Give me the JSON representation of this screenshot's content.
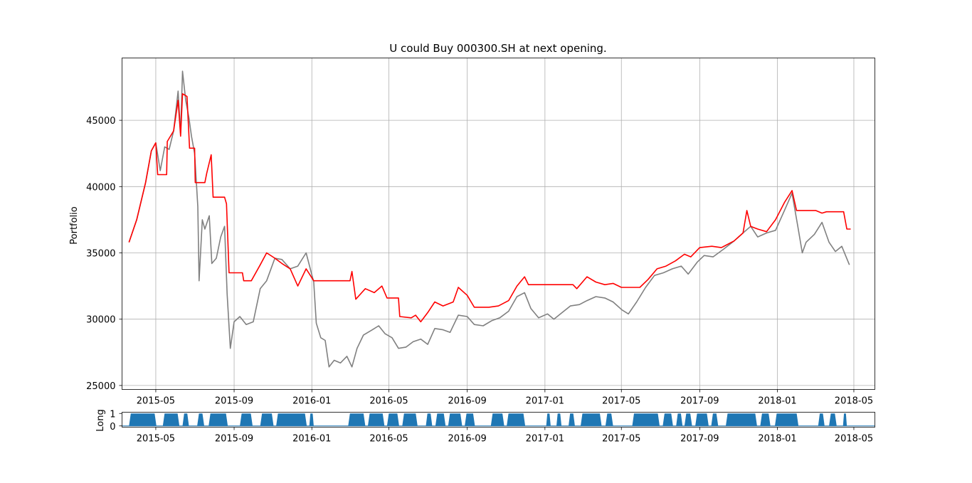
{
  "chart_data": [
    {
      "type": "line",
      "title": "U could Buy 000300.SH at next opening.",
      "xlabel": "",
      "ylabel": "Portfolio",
      "x_ticks": [
        "2015-05",
        "2015-09",
        "2016-01",
        "2016-05",
        "2016-09",
        "2017-01",
        "2017-05",
        "2017-09",
        "2018-01",
        "2018-05"
      ],
      "y_ticks": [
        25000,
        30000,
        35000,
        40000,
        45000
      ],
      "xlim": [
        "2015-03-09",
        "2018-06-03"
      ],
      "ylim": [
        24700,
        49700
      ],
      "grid": true,
      "series": [
        {
          "color": "#808080",
          "points": [
            [
              "2015-03-20",
              35800
            ],
            [
              "2015-04-01",
              37500
            ],
            [
              "2015-04-15",
              40300
            ],
            [
              "2015-04-24",
              42700
            ],
            [
              "2015-05-01",
              43300
            ],
            [
              "2015-05-08",
              41200
            ],
            [
              "2015-05-15",
              43000
            ],
            [
              "2015-05-22",
              42800
            ],
            [
              "2015-05-29",
              44200
            ],
            [
              "2015-06-05",
              47200
            ],
            [
              "2015-06-09",
              44000
            ],
            [
              "2015-06-12",
              48700
            ],
            [
              "2015-06-17",
              46500
            ],
            [
              "2015-06-22",
              45200
            ],
            [
              "2015-06-26",
              43800
            ],
            [
              "2015-07-01",
              42500
            ],
            [
              "2015-07-06",
              38500
            ],
            [
              "2015-07-08",
              32900
            ],
            [
              "2015-07-13",
              37500
            ],
            [
              "2015-07-17",
              36800
            ],
            [
              "2015-07-24",
              37800
            ],
            [
              "2015-07-28",
              34200
            ],
            [
              "2015-08-04",
              34600
            ],
            [
              "2015-08-11",
              36200
            ],
            [
              "2015-08-17",
              37000
            ],
            [
              "2015-08-21",
              31900
            ],
            [
              "2015-08-26",
              27800
            ],
            [
              "2015-09-01",
              29800
            ],
            [
              "2015-09-10",
              30200
            ],
            [
              "2015-09-20",
              29600
            ],
            [
              "2015-10-01",
              29800
            ],
            [
              "2015-10-12",
              32300
            ],
            [
              "2015-10-22",
              32900
            ],
            [
              "2015-11-04",
              34600
            ],
            [
              "2015-11-15",
              34500
            ],
            [
              "2015-11-28",
              33800
            ],
            [
              "2015-12-10",
              34000
            ],
            [
              "2015-12-23",
              35000
            ],
            [
              "2016-01-04",
              32800
            ],
            [
              "2016-01-08",
              29700
            ],
            [
              "2016-01-15",
              28600
            ],
            [
              "2016-01-22",
              28400
            ],
            [
              "2016-01-28",
              26400
            ],
            [
              "2016-02-05",
              26900
            ],
            [
              "2016-02-15",
              26700
            ],
            [
              "2016-02-25",
              27200
            ],
            [
              "2016-03-04",
              26400
            ],
            [
              "2016-03-12",
              27800
            ],
            [
              "2016-03-22",
              28800
            ],
            [
              "2016-04-05",
              29200
            ],
            [
              "2016-04-15",
              29500
            ],
            [
              "2016-04-25",
              28900
            ],
            [
              "2016-05-06",
              28600
            ],
            [
              "2016-05-16",
              27800
            ],
            [
              "2016-05-28",
              27900
            ],
            [
              "2016-06-08",
              28300
            ],
            [
              "2016-06-20",
              28500
            ],
            [
              "2016-07-01",
              28100
            ],
            [
              "2016-07-12",
              29300
            ],
            [
              "2016-07-25",
              29200
            ],
            [
              "2016-08-05",
              29000
            ],
            [
              "2016-08-18",
              30300
            ],
            [
              "2016-09-01",
              30200
            ],
            [
              "2016-09-12",
              29600
            ],
            [
              "2016-09-26",
              29500
            ],
            [
              "2016-10-10",
              29900
            ],
            [
              "2016-10-22",
              30100
            ],
            [
              "2016-11-05",
              30600
            ],
            [
              "2016-11-18",
              31700
            ],
            [
              "2016-11-30",
              32000
            ],
            [
              "2016-12-10",
              30800
            ],
            [
              "2016-12-22",
              30100
            ],
            [
              "2017-01-05",
              30400
            ],
            [
              "2017-01-15",
              30000
            ],
            [
              "2017-01-28",
              30500
            ],
            [
              "2017-02-10",
              31000
            ],
            [
              "2017-02-24",
              31100
            ],
            [
              "2017-03-08",
              31400
            ],
            [
              "2017-03-22",
              31700
            ],
            [
              "2017-04-05",
              31600
            ],
            [
              "2017-04-18",
              31300
            ],
            [
              "2017-05-02",
              30700
            ],
            [
              "2017-05-12",
              30400
            ],
            [
              "2017-05-25",
              31300
            ],
            [
              "2017-06-08",
              32400
            ],
            [
              "2017-06-22",
              33300
            ],
            [
              "2017-07-06",
              33500
            ],
            [
              "2017-07-20",
              33800
            ],
            [
              "2017-08-03",
              34000
            ],
            [
              "2017-08-14",
              33400
            ],
            [
              "2017-08-28",
              34300
            ],
            [
              "2017-09-08",
              34800
            ],
            [
              "2017-09-22",
              34700
            ],
            [
              "2017-10-09",
              35300
            ],
            [
              "2017-10-25",
              35900
            ],
            [
              "2017-11-08",
              36500
            ],
            [
              "2017-11-20",
              37000
            ],
            [
              "2017-12-01",
              36200
            ],
            [
              "2017-12-15",
              36500
            ],
            [
              "2017-12-29",
              36700
            ],
            [
              "2018-01-12",
              38200
            ],
            [
              "2018-01-24",
              39500
            ],
            [
              "2018-02-02",
              37000
            ],
            [
              "2018-02-09",
              35000
            ],
            [
              "2018-02-15",
              35800
            ],
            [
              "2018-02-28",
              36400
            ],
            [
              "2018-03-12",
              37300
            ],
            [
              "2018-03-23",
              35800
            ],
            [
              "2018-04-02",
              35100
            ],
            [
              "2018-04-12",
              35500
            ],
            [
              "2018-04-18",
              34800
            ],
            [
              "2018-04-24",
              34100
            ]
          ]
        },
        {
          "color": "#ff0000",
          "points": [
            [
              "2015-03-20",
              35800
            ],
            [
              "2015-04-01",
              37500
            ],
            [
              "2015-04-15",
              40300
            ],
            [
              "2015-04-24",
              42700
            ],
            [
              "2015-05-01",
              43300
            ],
            [
              "2015-05-04",
              40900
            ],
            [
              "2015-05-18",
              40900
            ],
            [
              "2015-05-19",
              43400
            ],
            [
              "2015-05-29",
              44200
            ],
            [
              "2015-06-05",
              46500
            ],
            [
              "2015-06-09",
              43800
            ],
            [
              "2015-06-12",
              47000
            ],
            [
              "2015-06-19",
              46800
            ],
            [
              "2015-06-23",
              42900
            ],
            [
              "2015-07-01",
              42900
            ],
            [
              "2015-07-02",
              40300
            ],
            [
              "2015-07-17",
              40300
            ],
            [
              "2015-07-20",
              41000
            ],
            [
              "2015-07-27",
              42400
            ],
            [
              "2015-07-30",
              39200
            ],
            [
              "2015-08-17",
              39200
            ],
            [
              "2015-08-20",
              38700
            ],
            [
              "2015-08-24",
              33500
            ],
            [
              "2015-09-14",
              33500
            ],
            [
              "2015-09-16",
              32900
            ],
            [
              "2015-09-28",
              32900
            ],
            [
              "2015-10-12",
              34100
            ],
            [
              "2015-10-22",
              35000
            ],
            [
              "2015-11-04",
              34600
            ],
            [
              "2015-11-15",
              34200
            ],
            [
              "2015-11-28",
              33800
            ],
            [
              "2015-12-10",
              32500
            ],
            [
              "2015-12-23",
              33800
            ],
            [
              "2016-01-04",
              32900
            ],
            [
              "2016-03-01",
              32900
            ],
            [
              "2016-03-04",
              33600
            ],
            [
              "2016-03-10",
              31500
            ],
            [
              "2016-03-25",
              32300
            ],
            [
              "2016-04-08",
              32000
            ],
            [
              "2016-04-20",
              32500
            ],
            [
              "2016-04-28",
              31600
            ],
            [
              "2016-05-16",
              31600
            ],
            [
              "2016-05-18",
              30200
            ],
            [
              "2016-06-05",
              30100
            ],
            [
              "2016-06-12",
              30300
            ],
            [
              "2016-06-20",
              29800
            ],
            [
              "2016-07-01",
              30500
            ],
            [
              "2016-07-12",
              31300
            ],
            [
              "2016-07-25",
              31000
            ],
            [
              "2016-08-10",
              31300
            ],
            [
              "2016-08-18",
              32400
            ],
            [
              "2016-09-01",
              31800
            ],
            [
              "2016-09-12",
              30900
            ],
            [
              "2016-10-05",
              30900
            ],
            [
              "2016-10-20",
              31000
            ],
            [
              "2016-11-05",
              31400
            ],
            [
              "2016-11-18",
              32500
            ],
            [
              "2016-11-30",
              33200
            ],
            [
              "2016-12-06",
              32600
            ],
            [
              "2017-02-14",
              32600
            ],
            [
              "2017-02-20",
              32300
            ],
            [
              "2017-03-08",
              33200
            ],
            [
              "2017-03-22",
              32800
            ],
            [
              "2017-04-05",
              32600
            ],
            [
              "2017-04-18",
              32700
            ],
            [
              "2017-05-01",
              32400
            ],
            [
              "2017-05-30",
              32400
            ],
            [
              "2017-06-12",
              33000
            ],
            [
              "2017-06-26",
              33800
            ],
            [
              "2017-07-10",
              34000
            ],
            [
              "2017-07-25",
              34400
            ],
            [
              "2017-08-08",
              34900
            ],
            [
              "2017-08-18",
              34700
            ],
            [
              "2017-09-01",
              35400
            ],
            [
              "2017-09-20",
              35500
            ],
            [
              "2017-10-05",
              35400
            ],
            [
              "2017-10-25",
              35900
            ],
            [
              "2017-11-08",
              36500
            ],
            [
              "2017-11-14",
              38200
            ],
            [
              "2017-11-20",
              37000
            ],
            [
              "2017-12-01",
              36800
            ],
            [
              "2017-12-15",
              36600
            ],
            [
              "2017-12-29",
              37500
            ],
            [
              "2018-01-12",
              38800
            ],
            [
              "2018-01-24",
              39700
            ],
            [
              "2018-01-31",
              38200
            ],
            [
              "2018-03-02",
              38200
            ],
            [
              "2018-03-12",
              38000
            ],
            [
              "2018-03-19",
              38100
            ],
            [
              "2018-04-15",
              38100
            ],
            [
              "2018-04-20",
              36800
            ],
            [
              "2018-04-26",
              36800
            ]
          ]
        }
      ]
    },
    {
      "type": "area",
      "title": "",
      "xlabel": "",
      "ylabel": "Long",
      "x_ticks": [
        "2015-05",
        "2015-09",
        "2016-01",
        "2016-05",
        "2016-09",
        "2017-01",
        "2017-05",
        "2017-09",
        "2018-01",
        "2018-05"
      ],
      "y_ticks": [
        0,
        1
      ],
      "xlim": [
        "2015-03-09",
        "2018-06-03"
      ],
      "ylim": [
        -0.1,
        1.1
      ],
      "grid": false,
      "color": "#1f77b4",
      "long_periods": [
        [
          "2015-03-20",
          "2015-05-02"
        ],
        [
          "2015-05-12",
          "2015-06-07"
        ],
        [
          "2015-06-12",
          "2015-06-22"
        ],
        [
          "2015-07-05",
          "2015-07-16"
        ],
        [
          "2015-07-23",
          "2015-08-22"
        ],
        [
          "2015-09-10",
          "2015-09-30"
        ],
        [
          "2015-10-12",
          "2015-11-02"
        ],
        [
          "2015-11-06",
          "2015-12-24"
        ],
        [
          "2015-12-28",
          "2016-01-04"
        ],
        [
          "2016-02-27",
          "2016-03-25"
        ],
        [
          "2016-03-29",
          "2016-04-24"
        ],
        [
          "2016-04-28",
          "2016-05-17"
        ],
        [
          "2016-05-22",
          "2016-06-15"
        ],
        [
          "2016-06-28",
          "2016-07-08"
        ],
        [
          "2016-07-13",
          "2016-07-29"
        ],
        [
          "2016-08-02",
          "2016-08-24"
        ],
        [
          "2016-08-28",
          "2016-09-13"
        ],
        [
          "2016-10-08",
          "2016-10-29"
        ],
        [
          "2016-11-02",
          "2016-12-01"
        ],
        [
          "2017-01-03",
          "2017-01-10"
        ],
        [
          "2017-01-19",
          "2017-01-27"
        ],
        [
          "2017-02-07",
          "2017-02-17"
        ],
        [
          "2017-02-26",
          "2017-03-31"
        ],
        [
          "2017-04-06",
          "2017-04-18"
        ],
        [
          "2017-05-18",
          "2017-06-30"
        ],
        [
          "2017-07-05",
          "2017-07-21"
        ],
        [
          "2017-07-26",
          "2017-08-05"
        ],
        [
          "2017-08-08",
          "2017-08-20"
        ],
        [
          "2017-08-25",
          "2017-09-15"
        ],
        [
          "2017-09-19",
          "2017-09-30"
        ],
        [
          "2017-10-12",
          "2017-11-30"
        ],
        [
          "2017-12-05",
          "2017-12-21"
        ],
        [
          "2017-12-28",
          "2018-02-03"
        ],
        [
          "2018-03-06",
          "2018-03-16"
        ],
        [
          "2018-03-23",
          "2018-04-04"
        ],
        [
          "2018-04-14",
          "2018-04-20"
        ]
      ]
    }
  ]
}
